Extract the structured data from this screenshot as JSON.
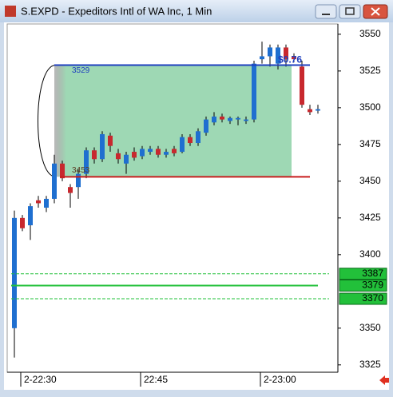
{
  "window": {
    "title": "S.EXPD - Expeditors Intl of WA Inc, 1 Min"
  },
  "chart_data": {
    "type": "candlestick",
    "categories": [
      null,
      "2-22:30",
      null,
      null,
      null,
      null,
      null,
      null,
      null,
      null,
      null,
      null,
      null,
      null,
      null,
      null,
      "22:45",
      null,
      null,
      null,
      null,
      null,
      null,
      null,
      null,
      null,
      null,
      null,
      null,
      null,
      null,
      "2-23:00",
      null,
      null,
      null,
      null,
      null,
      null,
      null
    ],
    "open": [
      3350,
      3425,
      3420,
      3437,
      3432,
      3438,
      3462,
      3446,
      3446,
      3455,
      3471,
      3465,
      3481,
      3469,
      3462,
      3470,
      3467,
      3470,
      3472,
      3468,
      3472,
      3470,
      3480,
      3476,
      3483,
      3490,
      3494,
      3491,
      3492,
      3491,
      3492,
      3533,
      3535,
      3530,
      3541,
      3535,
      3528,
      3499,
      3498
    ],
    "high": [
      3430,
      3427,
      3435,
      3440,
      3440,
      3468,
      3464,
      3448,
      3458,
      3473,
      3473,
      3484,
      3483,
      3472,
      3470,
      3473,
      3474,
      3474,
      3474,
      3472,
      3474,
      3482,
      3482,
      3486,
      3494,
      3497,
      3496,
      3494,
      3494,
      3494,
      3532,
      3545,
      3543,
      3543,
      3543,
      3537,
      3532,
      3502,
      3502
    ],
    "low": [
      3330,
      3416,
      3410,
      3432,
      3429,
      3435,
      3450,
      3432,
      3438,
      3452,
      3462,
      3463,
      3470,
      3462,
      3455,
      3464,
      3465,
      3468,
      3466,
      3466,
      3467,
      3469,
      3474,
      3474,
      3481,
      3488,
      3490,
      3489,
      3488,
      3489,
      3490,
      3530,
      3528,
      3526,
      3528,
      3531,
      3500,
      3495,
      3496
    ],
    "close": [
      3425,
      3418,
      3433,
      3435,
      3438,
      3462,
      3452,
      3442,
      3455,
      3471,
      3465,
      3482,
      3474,
      3465,
      3468,
      3466,
      3472,
      3472,
      3468,
      3470,
      3469,
      3480,
      3476,
      3484,
      3492,
      3494,
      3492,
      3493,
      3493,
      3492,
      3530,
      3535,
      3541,
      3541,
      3533,
      3533,
      3502,
      3497,
      3499
    ],
    "up_color": "#1f6fd0",
    "down_color": "#c8282e",
    "ylim": [
      3320,
      3557
    ],
    "yticks": [
      3325,
      3350,
      3400,
      3425,
      3450,
      3475,
      3500,
      3525,
      3550
    ],
    "levels": [
      {
        "value": 3529,
        "color": "#1f3fbf"
      },
      {
        "value": 3453,
        "color": "#c81e1e"
      }
    ],
    "price_lines": [
      {
        "value": 3387,
        "style": "dashed"
      },
      {
        "value": 3379,
        "style": "solid"
      },
      {
        "value": 3370,
        "style": "dashed"
      }
    ],
    "price_line_color": "#22c03a",
    "annotation": "$0.76"
  }
}
